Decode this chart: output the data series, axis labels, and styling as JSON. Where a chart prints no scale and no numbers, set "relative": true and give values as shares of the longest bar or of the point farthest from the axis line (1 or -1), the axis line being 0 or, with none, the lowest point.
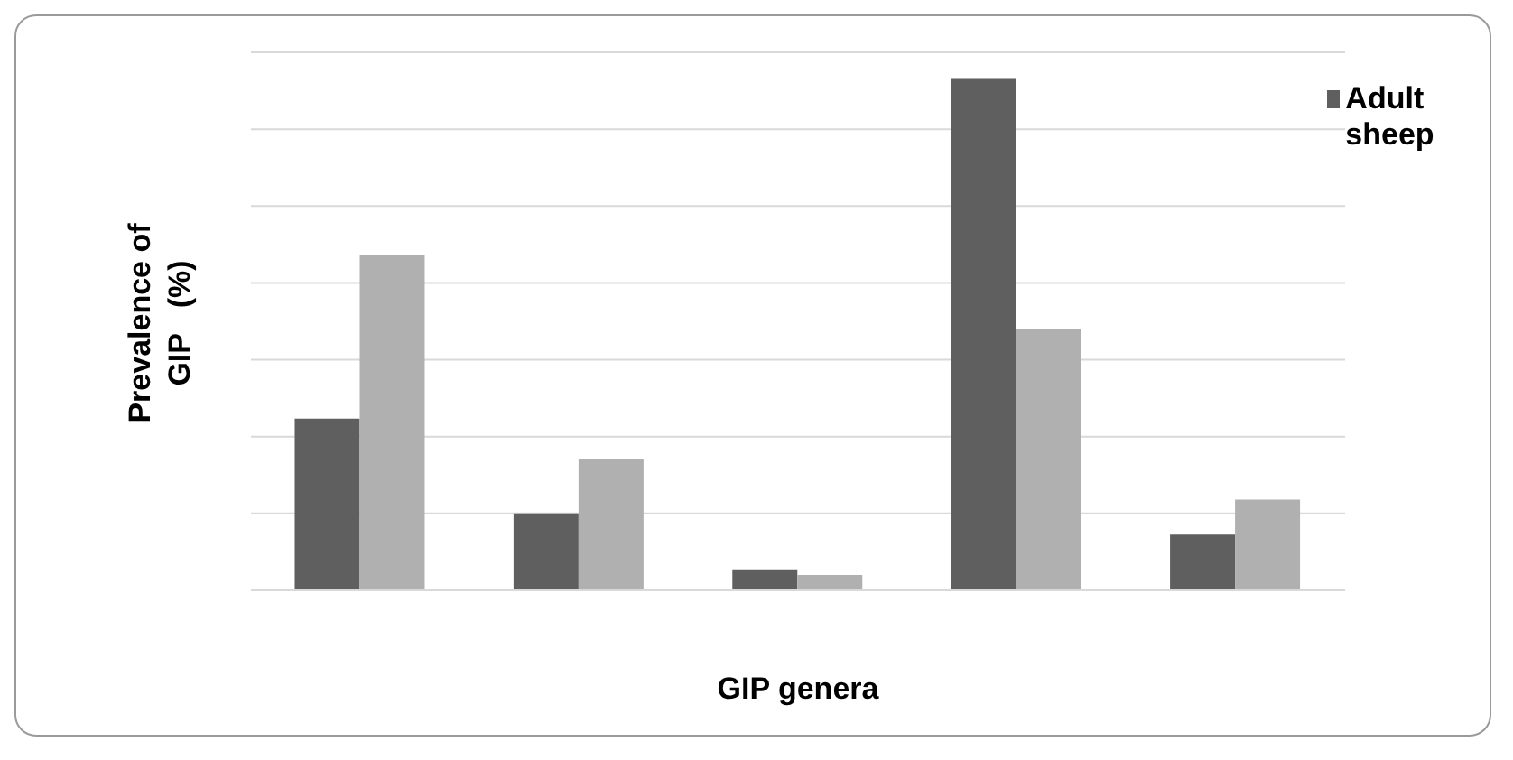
{
  "chart_data": {
    "type": "bar",
    "relative": true,
    "xlabel": "GIP genera",
    "ylabel": "Prevalence of\nGIP   (%)",
    "categories": [
      null,
      null,
      null,
      null,
      null
    ],
    "grid": "y",
    "legend": "top right",
    "series": [
      {
        "name": "Adult sheep",
        "color": "#5f5f5f",
        "values": [
          0.335,
          0.15,
          0.041,
          1,
          0.109
        ]
      },
      {
        "color": "#b0b0b0",
        "values": [
          0.654,
          0.256,
          0.03,
          0.511,
          0.177
        ]
      }
    ]
  }
}
